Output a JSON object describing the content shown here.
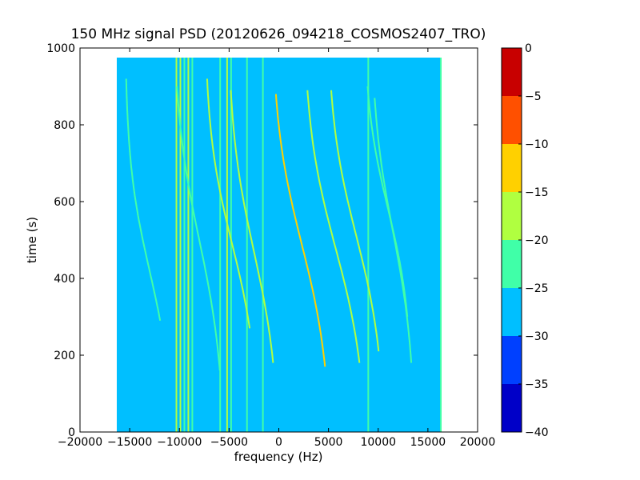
{
  "chart_data": {
    "type": "heatmap",
    "title": "150 MHz signal PSD (20120626_094218_COSMOS2407_TRO)",
    "xlabel": "frequency (Hz)",
    "ylabel": "time (s)",
    "xlim": [
      -20000,
      20000
    ],
    "ylim": [
      0,
      1000
    ],
    "xticks": [
      "−20000",
      "−15000",
      "−10000",
      "−5000",
      "0",
      "5000",
      "10000",
      "15000",
      "20000"
    ],
    "xtick_values": [
      -20000,
      -15000,
      -10000,
      -5000,
      0,
      5000,
      10000,
      15000,
      20000
    ],
    "yticks": [
      "0",
      "200",
      "400",
      "600",
      "800",
      "1000"
    ],
    "ytick_values": [
      0,
      200,
      400,
      600,
      800,
      1000
    ],
    "data_extent": {
      "freq_range_hz": [
        -16300,
        16300
      ],
      "time_range_s": [
        0,
        975
      ]
    },
    "background_level_db": -30,
    "colorbar": {
      "levels": [
        -40,
        -35,
        -30,
        -25,
        -20,
        -15,
        -10,
        -5,
        0
      ],
      "tick_labels": [
        "−40",
        "−35",
        "−30",
        "−25",
        "−20",
        "−15",
        "−10",
        "−5",
        "0"
      ],
      "colors": [
        "#0000c8",
        "#0040ff",
        "#00bfff",
        "#40ffa8",
        "#b0ff40",
        "#ffd000",
        "#ff5000",
        "#c80000"
      ]
    },
    "vertical_lines": [
      {
        "freq": -10300,
        "color": "#b0ff40"
      },
      {
        "freq": -9900,
        "color": "#b0ff40"
      },
      {
        "freq": -9500,
        "color": "#40ffa8"
      },
      {
        "freq": -9100,
        "color": "#b0ff40"
      },
      {
        "freq": -8700,
        "color": "#40ffa8"
      },
      {
        "freq": -5900,
        "color": "#40ffa8"
      },
      {
        "freq": -5200,
        "color": "#b0ff40"
      },
      {
        "freq": -4800,
        "color": "#40ffa8"
      },
      {
        "freq": -3200,
        "color": "#40ffa8"
      },
      {
        "freq": -1600,
        "color": "#40ffa8"
      },
      {
        "freq": 9000,
        "color": "#40ffa8"
      },
      {
        "freq": 16300,
        "color": "#40ffa8"
      }
    ],
    "doppler_traces": [
      {
        "offset_hz": -13000,
        "t0_s": 920,
        "t1_s": 290,
        "tmid_s": 420,
        "amp_hz": 2500,
        "color": "#40ffa8"
      },
      {
        "offset_hz": -8000,
        "t0_s": 900,
        "t1_s": 160,
        "tmid_s": 500,
        "amp_hz": 2700,
        "color": "#40ffa8"
      },
      {
        "offset_hz": -4700,
        "t0_s": 920,
        "t1_s": 270,
        "tmid_s": 490,
        "amp_hz": 2800,
        "color": "#b0ff40"
      },
      {
        "offset_hz": -2500,
        "t0_s": 890,
        "t1_s": 180,
        "tmid_s": 470,
        "amp_hz": 2700,
        "color": "#b0ff40"
      },
      {
        "offset_hz": 2300,
        "t0_s": 880,
        "t1_s": 170,
        "tmid_s": 490,
        "amp_hz": 3100,
        "color": "#ffd000"
      },
      {
        "offset_hz": 5700,
        "t0_s": 890,
        "t1_s": 180,
        "tmid_s": 480,
        "amp_hz": 3300,
        "color": "#b0ff40"
      },
      {
        "offset_hz": 7800,
        "t0_s": 890,
        "t1_s": 210,
        "tmid_s": 510,
        "amp_hz": 3000,
        "color": "#b0ff40"
      },
      {
        "offset_hz": 11000,
        "t0_s": 900,
        "t1_s": 300,
        "tmid_s": 580,
        "amp_hz": 2500,
        "color": "#40ffa8"
      },
      {
        "offset_hz": 11500,
        "t0_s": 870,
        "t1_s": 180,
        "tmid_s": 520,
        "amp_hz": 2300,
        "color": "#40ffa8"
      }
    ],
    "grid": false
  }
}
